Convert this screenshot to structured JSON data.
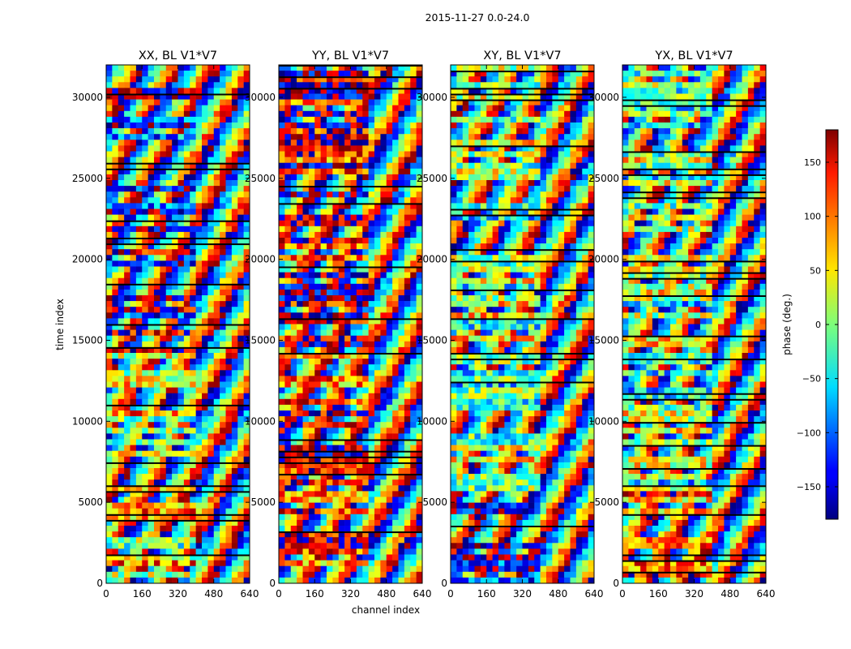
{
  "figure": {
    "suptitle": "2015-11-27 0.0-24.0",
    "xlabel": "channel index",
    "ylabel": "time index"
  },
  "chart_data": {
    "type": "heatmap",
    "colormap": "jet",
    "x_ticks": [
      0,
      160,
      320,
      480,
      640
    ],
    "y_ticks": [
      0,
      5000,
      10000,
      15000,
      20000,
      25000,
      30000
    ],
    "xlim": [
      0,
      640
    ],
    "ylim": [
      0,
      32000
    ],
    "panels": [
      {
        "title": "XX, BL V1*V7",
        "dominant_phase_low_band": 40,
        "dominant_phase_mid_band": 40,
        "dominant_phase_high_band": -150
      },
      {
        "title": "YY, BL V1*V7",
        "dominant_phase_low_band": 120,
        "dominant_phase_mid_band": 130,
        "dominant_phase_high_band": 150
      },
      {
        "title": "XY, BL V1*V7",
        "dominant_phase_low_band": -140,
        "dominant_phase_mid_band": 0,
        "dominant_phase_high_band": 0
      },
      {
        "title": "YX, BL V1*V7",
        "dominant_phase_low_band": 100,
        "dominant_phase_mid_band": 0,
        "dominant_phase_high_band": 0
      }
    ],
    "colorbar": {
      "label": "phase (deg.)",
      "range": [
        -180,
        180
      ],
      "ticks": [
        -150,
        -100,
        -50,
        0,
        50,
        100,
        150
      ]
    }
  }
}
